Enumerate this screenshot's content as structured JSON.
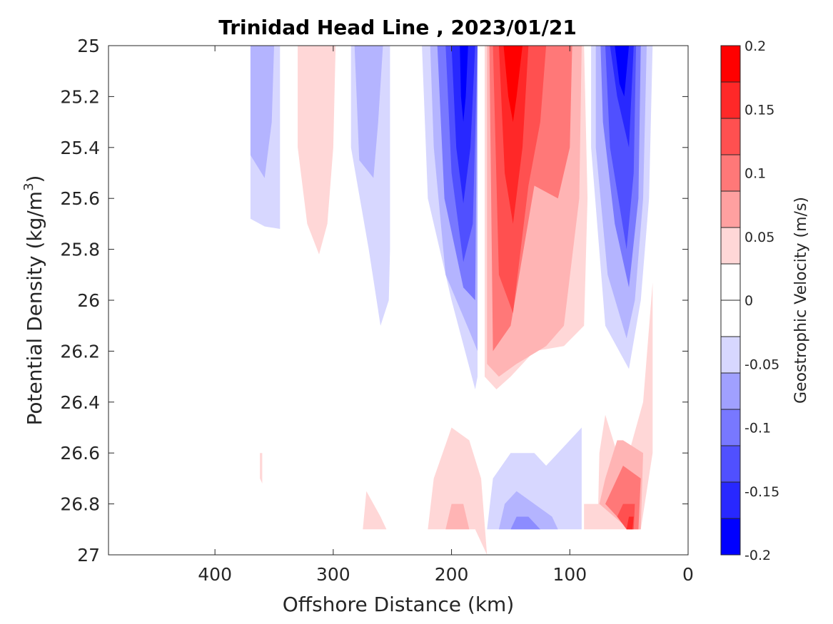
{
  "chart_data": {
    "type": "heatmap",
    "subtype": "filled-contour",
    "title": "Trinidad Head Line , 2023/01/21",
    "xlabel": "Offshore Distance (km)",
    "ylabel_main": "Potential Density (kg/m",
    "ylabel_sup": "3",
    "ylabel_close": ")",
    "x_direction": "reversed",
    "xlim": [
      0,
      490
    ],
    "ylim": [
      25,
      27
    ],
    "y_direction": "reversed",
    "x_ticks": [
      400,
      300,
      200,
      100,
      0
    ],
    "x_tick_labels": [
      "400",
      "300",
      "200",
      "100",
      "0"
    ],
    "y_ticks": [
      25,
      25.2,
      25.4,
      25.6,
      25.8,
      26,
      26.2,
      26.4,
      26.6,
      26.8,
      27
    ],
    "y_tick_labels": [
      "25",
      "25.2",
      "25.4",
      "25.6",
      "25.8",
      "26",
      "26.2",
      "26.4",
      "26.6",
      "26.8",
      "27"
    ],
    "colorbar": {
      "label": "Geostrophic Velocity (m/s)",
      "range": [
        -0.2,
        0.2
      ],
      "tick_values": [
        0.2,
        0.15,
        0.1,
        0.05,
        0,
        -0.05,
        -0.1,
        -0.15,
        -0.2
      ],
      "tick_labels": [
        "0.2",
        "0.15",
        "0.1",
        "0.05",
        "0",
        "-0.05",
        "-0.1",
        "-0.15",
        "-0.2"
      ],
      "levels_top_to_bottom": [
        "#ff0000",
        "#ff2828",
        "#ff5050",
        "#ff7878",
        "#ffa0a0",
        "#ffd7d7",
        "#ffffff",
        "#ffffff",
        "#d7d7ff",
        "#a0a0ff",
        "#7878ff",
        "#5050ff",
        "#2828ff",
        "#0000ff"
      ]
    },
    "regions": [
      {
        "value": -0.05,
        "color": "#d7d7ff",
        "points": [
          [
            370,
            25
          ],
          [
            345,
            25
          ],
          [
            345,
            25.72
          ],
          [
            358,
            25.71
          ],
          [
            370,
            25.68
          ]
        ]
      },
      {
        "value": -0.1,
        "color": "#b4b4ff",
        "points": [
          [
            370,
            25
          ],
          [
            350,
            25
          ],
          [
            352,
            25.3
          ],
          [
            358,
            25.52
          ],
          [
            370,
            25.43
          ]
        ]
      },
      {
        "value": 0.05,
        "color": "#ffd7d7",
        "points": [
          [
            330,
            25
          ],
          [
            298,
            25
          ],
          [
            300,
            25.4
          ],
          [
            305,
            25.7
          ],
          [
            312,
            25.82
          ],
          [
            322,
            25.7
          ],
          [
            330,
            25.4
          ]
        ]
      },
      {
        "value": -0.05,
        "color": "#d7d7ff",
        "points": [
          [
            285,
            25
          ],
          [
            252,
            25
          ],
          [
            252,
            25.8
          ],
          [
            253,
            26
          ],
          [
            260,
            26.1
          ],
          [
            270,
            25.8
          ],
          [
            285,
            25.4
          ]
        ]
      },
      {
        "value": -0.1,
        "color": "#b4b4ff",
        "points": [
          [
            282,
            25
          ],
          [
            258,
            25
          ],
          [
            262,
            25.3
          ],
          [
            266,
            25.52
          ],
          [
            278,
            25.45
          ]
        ]
      },
      {
        "value": -0.05,
        "color": "#d7d7ff",
        "points": [
          [
            225,
            25
          ],
          [
            178,
            25
          ],
          [
            178,
            26.3
          ],
          [
            180,
            26.35
          ],
          [
            200,
            26
          ],
          [
            220,
            25.6
          ]
        ]
      },
      {
        "value": -0.1,
        "color": "#b4b4ff",
        "points": [
          [
            218,
            25
          ],
          [
            178,
            25
          ],
          [
            178,
            26.2
          ],
          [
            185,
            26.12
          ],
          [
            205,
            25.9
          ],
          [
            215,
            25.4
          ]
        ]
      },
      {
        "value": -0.1,
        "color": "#7878ff",
        "points": [
          [
            212,
            25
          ],
          [
            178,
            25
          ],
          [
            180,
            26
          ],
          [
            190,
            25.95
          ],
          [
            206,
            25.6
          ]
        ]
      },
      {
        "value": -0.15,
        "color": "#5050ff",
        "points": [
          [
            205,
            25
          ],
          [
            178,
            25
          ],
          [
            182,
            25.7
          ],
          [
            190,
            25.85
          ],
          [
            200,
            25.5
          ]
        ]
      },
      {
        "value": -0.15,
        "color": "#2828ff",
        "points": [
          [
            200,
            25
          ],
          [
            180,
            25
          ],
          [
            184,
            25.4
          ],
          [
            190,
            25.62
          ],
          [
            196,
            25.4
          ]
        ]
      },
      {
        "value": -0.2,
        "color": "#0000ff",
        "points": [
          [
            193,
            25
          ],
          [
            186,
            25
          ],
          [
            188,
            25.2
          ],
          [
            190,
            25.3
          ],
          [
            192,
            25.2
          ]
        ]
      },
      {
        "value": 0.05,
        "color": "#ffd7d7",
        "points": [
          [
            172,
            25
          ],
          [
            88,
            25
          ],
          [
            85,
            25.6
          ],
          [
            88,
            26.1
          ],
          [
            105,
            26.18
          ],
          [
            130,
            26.2
          ],
          [
            150,
            26.3
          ],
          [
            162,
            26.35
          ],
          [
            172,
            26.3
          ]
        ]
      },
      {
        "value": 0.05,
        "color": "#ffb4b4",
        "points": [
          [
            170,
            25
          ],
          [
            90,
            25
          ],
          [
            92,
            25.6
          ],
          [
            105,
            26.1
          ],
          [
            120,
            26.18
          ],
          [
            145,
            26.25
          ],
          [
            160,
            26.3
          ],
          [
            170,
            26.25
          ]
        ]
      },
      {
        "value": 0.1,
        "color": "#ff7878",
        "points": [
          [
            168,
            25
          ],
          [
            98,
            25
          ],
          [
            100,
            25.4
          ],
          [
            110,
            25.6
          ],
          [
            130,
            25.55
          ],
          [
            150,
            26.1
          ],
          [
            165,
            26.2
          ]
        ]
      },
      {
        "value": 0.15,
        "color": "#ff5050",
        "points": [
          [
            165,
            25
          ],
          [
            120,
            25
          ],
          [
            125,
            25.3
          ],
          [
            135,
            25.55
          ],
          [
            148,
            26.05
          ],
          [
            160,
            25.9
          ]
        ]
      },
      {
        "value": 0.15,
        "color": "#ff2828",
        "points": [
          [
            160,
            25
          ],
          [
            135,
            25
          ],
          [
            140,
            25.4
          ],
          [
            148,
            25.7
          ],
          [
            155,
            25.5
          ]
        ]
      },
      {
        "value": 0.2,
        "color": "#ff0000",
        "points": [
          [
            156,
            25
          ],
          [
            140,
            25
          ],
          [
            145,
            25.2
          ],
          [
            148,
            25.3
          ],
          [
            152,
            25.2
          ]
        ]
      },
      {
        "value": -0.05,
        "color": "#d7d7ff",
        "points": [
          [
            82,
            25
          ],
          [
            30,
            25
          ],
          [
            33,
            25.6
          ],
          [
            40,
            26
          ],
          [
            50,
            26.27
          ],
          [
            70,
            26.1
          ],
          [
            82,
            25.4
          ]
        ]
      },
      {
        "value": -0.1,
        "color": "#b4b4ff",
        "points": [
          [
            78,
            25
          ],
          [
            35,
            25
          ],
          [
            38,
            25.6
          ],
          [
            45,
            26
          ],
          [
            52,
            26.15
          ],
          [
            68,
            25.9
          ],
          [
            78,
            25.4
          ]
        ]
      },
      {
        "value": -0.1,
        "color": "#7878ff",
        "points": [
          [
            74,
            25
          ],
          [
            40,
            25
          ],
          [
            42,
            25.6
          ],
          [
            50,
            25.95
          ],
          [
            62,
            25.7
          ],
          [
            72,
            25.3
          ]
        ]
      },
      {
        "value": -0.15,
        "color": "#5050ff",
        "points": [
          [
            70,
            25
          ],
          [
            44,
            25
          ],
          [
            46,
            25.5
          ],
          [
            52,
            25.8
          ],
          [
            66,
            25.4
          ]
        ]
      },
      {
        "value": -0.15,
        "color": "#2828ff",
        "points": [
          [
            66,
            25
          ],
          [
            46,
            25
          ],
          [
            50,
            25.4
          ],
          [
            60,
            25.2
          ]
        ]
      },
      {
        "value": -0.2,
        "color": "#0000ff",
        "points": [
          [
            62,
            25
          ],
          [
            50,
            25
          ],
          [
            54,
            25.2
          ],
          [
            58,
            25.15
          ]
        ]
      },
      {
        "value": 0.05,
        "color": "#ffd7d7",
        "points": [
          [
            30,
            25.93
          ],
          [
            38,
            26.4
          ],
          [
            50,
            26.6
          ],
          [
            60,
            26.6
          ],
          [
            70,
            26.45
          ],
          [
            75,
            26.6
          ],
          [
            76,
            26.8
          ],
          [
            88,
            26.8
          ],
          [
            88,
            26.9
          ],
          [
            40,
            26.9
          ],
          [
            30,
            26.6
          ]
        ]
      },
      {
        "value": 0.05,
        "color": "#ffb4b4",
        "points": [
          [
            38,
            26.6
          ],
          [
            55,
            26.55
          ],
          [
            60,
            26.55
          ],
          [
            70,
            26.7
          ],
          [
            75,
            26.8
          ],
          [
            50,
            26.9
          ],
          [
            40,
            26.9
          ]
        ]
      },
      {
        "value": 0.1,
        "color": "#ff7878",
        "points": [
          [
            40,
            26.7
          ],
          [
            55,
            26.65
          ],
          [
            65,
            26.75
          ],
          [
            70,
            26.8
          ],
          [
            60,
            26.85
          ],
          [
            50,
            26.9
          ],
          [
            42,
            26.9
          ]
        ]
      },
      {
        "value": 0.15,
        "color": "#ff5050",
        "points": [
          [
            45,
            26.8
          ],
          [
            55,
            26.8
          ],
          [
            60,
            26.85
          ],
          [
            52,
            26.9
          ],
          [
            46,
            26.9
          ]
        ]
      },
      {
        "value": 0.2,
        "color": "#ff2828",
        "points": [
          [
            46,
            26.85
          ],
          [
            50,
            26.85
          ],
          [
            52,
            26.9
          ],
          [
            47,
            26.9
          ]
        ]
      },
      {
        "value": 0.05,
        "color": "#ffd7d7",
        "points": [
          [
            220,
            26.9
          ],
          [
            215,
            26.7
          ],
          [
            200,
            26.5
          ],
          [
            185,
            26.55
          ],
          [
            175,
            26.7
          ],
          [
            170,
            27
          ],
          [
            180,
            26.9
          ]
        ]
      },
      {
        "value": 0.05,
        "color": "#ffb4b4",
        "points": [
          [
            205,
            26.9
          ],
          [
            200,
            26.8
          ],
          [
            190,
            26.8
          ],
          [
            185,
            26.9
          ]
        ]
      },
      {
        "value": -0.05,
        "color": "#d7d7ff",
        "points": [
          [
            170,
            26.9
          ],
          [
            165,
            26.7
          ],
          [
            150,
            26.6
          ],
          [
            130,
            26.6
          ],
          [
            120,
            26.65
          ],
          [
            110,
            26.6
          ],
          [
            90,
            26.5
          ],
          [
            90,
            26.9
          ]
        ]
      },
      {
        "value": -0.05,
        "color": "#b4b4ff",
        "points": [
          [
            160,
            26.9
          ],
          [
            155,
            26.8
          ],
          [
            145,
            26.75
          ],
          [
            130,
            26.8
          ],
          [
            115,
            26.85
          ],
          [
            110,
            26.9
          ]
        ]
      },
      {
        "value": -0.1,
        "color": "#8c8cff",
        "points": [
          [
            150,
            26.9
          ],
          [
            145,
            26.85
          ],
          [
            135,
            26.85
          ],
          [
            125,
            26.9
          ]
        ]
      },
      {
        "value": 0.05,
        "color": "#ffd7d7",
        "points": [
          [
            275,
            26.9
          ],
          [
            272,
            26.75
          ],
          [
            260,
            26.85
          ],
          [
            255,
            26.9
          ]
        ]
      },
      {
        "value": 0.05,
        "color": "#ffd7d7",
        "points": [
          [
            362,
            26.6
          ],
          [
            360,
            26.6
          ],
          [
            360,
            26.72
          ],
          [
            362,
            26.7
          ]
        ]
      }
    ]
  }
}
